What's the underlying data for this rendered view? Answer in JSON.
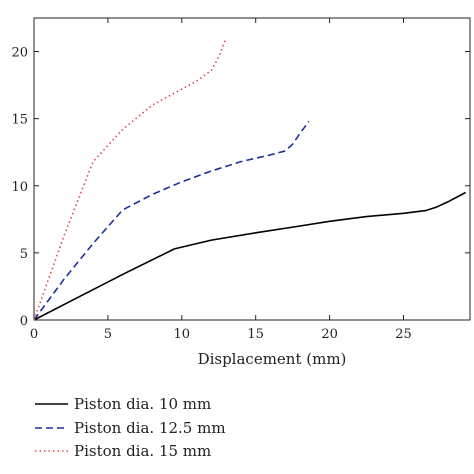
{
  "chart_data": {
    "type": "line",
    "title": "",
    "xlabel": "Displacement (mm)",
    "ylabel": "",
    "xlim": [
      0,
      29.5
    ],
    "ylim": [
      0,
      22.5
    ],
    "xticks": [
      0,
      5,
      10,
      15,
      20,
      25
    ],
    "yticks": [
      0,
      5,
      10,
      15,
      20
    ],
    "grid": false,
    "legend_position": "bottom",
    "series": [
      {
        "name": "Piston dia. 10 mm",
        "color": "#000000",
        "dash": "solid",
        "points": [
          [
            0,
            0
          ],
          [
            3,
            1.7
          ],
          [
            6,
            3.4
          ],
          [
            9.5,
            5.3
          ],
          [
            12,
            5.95
          ],
          [
            15,
            6.5
          ],
          [
            18,
            7.0
          ],
          [
            20,
            7.35
          ],
          [
            22.5,
            7.7
          ],
          [
            25,
            7.95
          ],
          [
            26.5,
            8.15
          ],
          [
            27.2,
            8.4
          ],
          [
            28,
            8.8
          ],
          [
            29.2,
            9.5
          ]
        ]
      },
      {
        "name": "Piston dia. 12.5 mm",
        "color": "#1f2f9a",
        "dash": "dashed",
        "points": [
          [
            0,
            0
          ],
          [
            2,
            3
          ],
          [
            4,
            5.7
          ],
          [
            6,
            8.2
          ],
          [
            8,
            9.35
          ],
          [
            10,
            10.3
          ],
          [
            12,
            11.1
          ],
          [
            14,
            11.8
          ],
          [
            16,
            12.3
          ],
          [
            17,
            12.6
          ],
          [
            17.5,
            13.1
          ],
          [
            18,
            13.9
          ],
          [
            18.6,
            14.8
          ]
        ]
      },
      {
        "name": "Piston dia. 15 mm",
        "color": "#d94c4c",
        "dash": "dotted",
        "points": [
          [
            0,
            0
          ],
          [
            2,
            6.2
          ],
          [
            4,
            11.8
          ],
          [
            6,
            14.2
          ],
          [
            8,
            16
          ],
          [
            10,
            17.2
          ],
          [
            11,
            17.8
          ],
          [
            12,
            18.6
          ],
          [
            12.5,
            19.6
          ],
          [
            13,
            21
          ]
        ]
      }
    ]
  }
}
